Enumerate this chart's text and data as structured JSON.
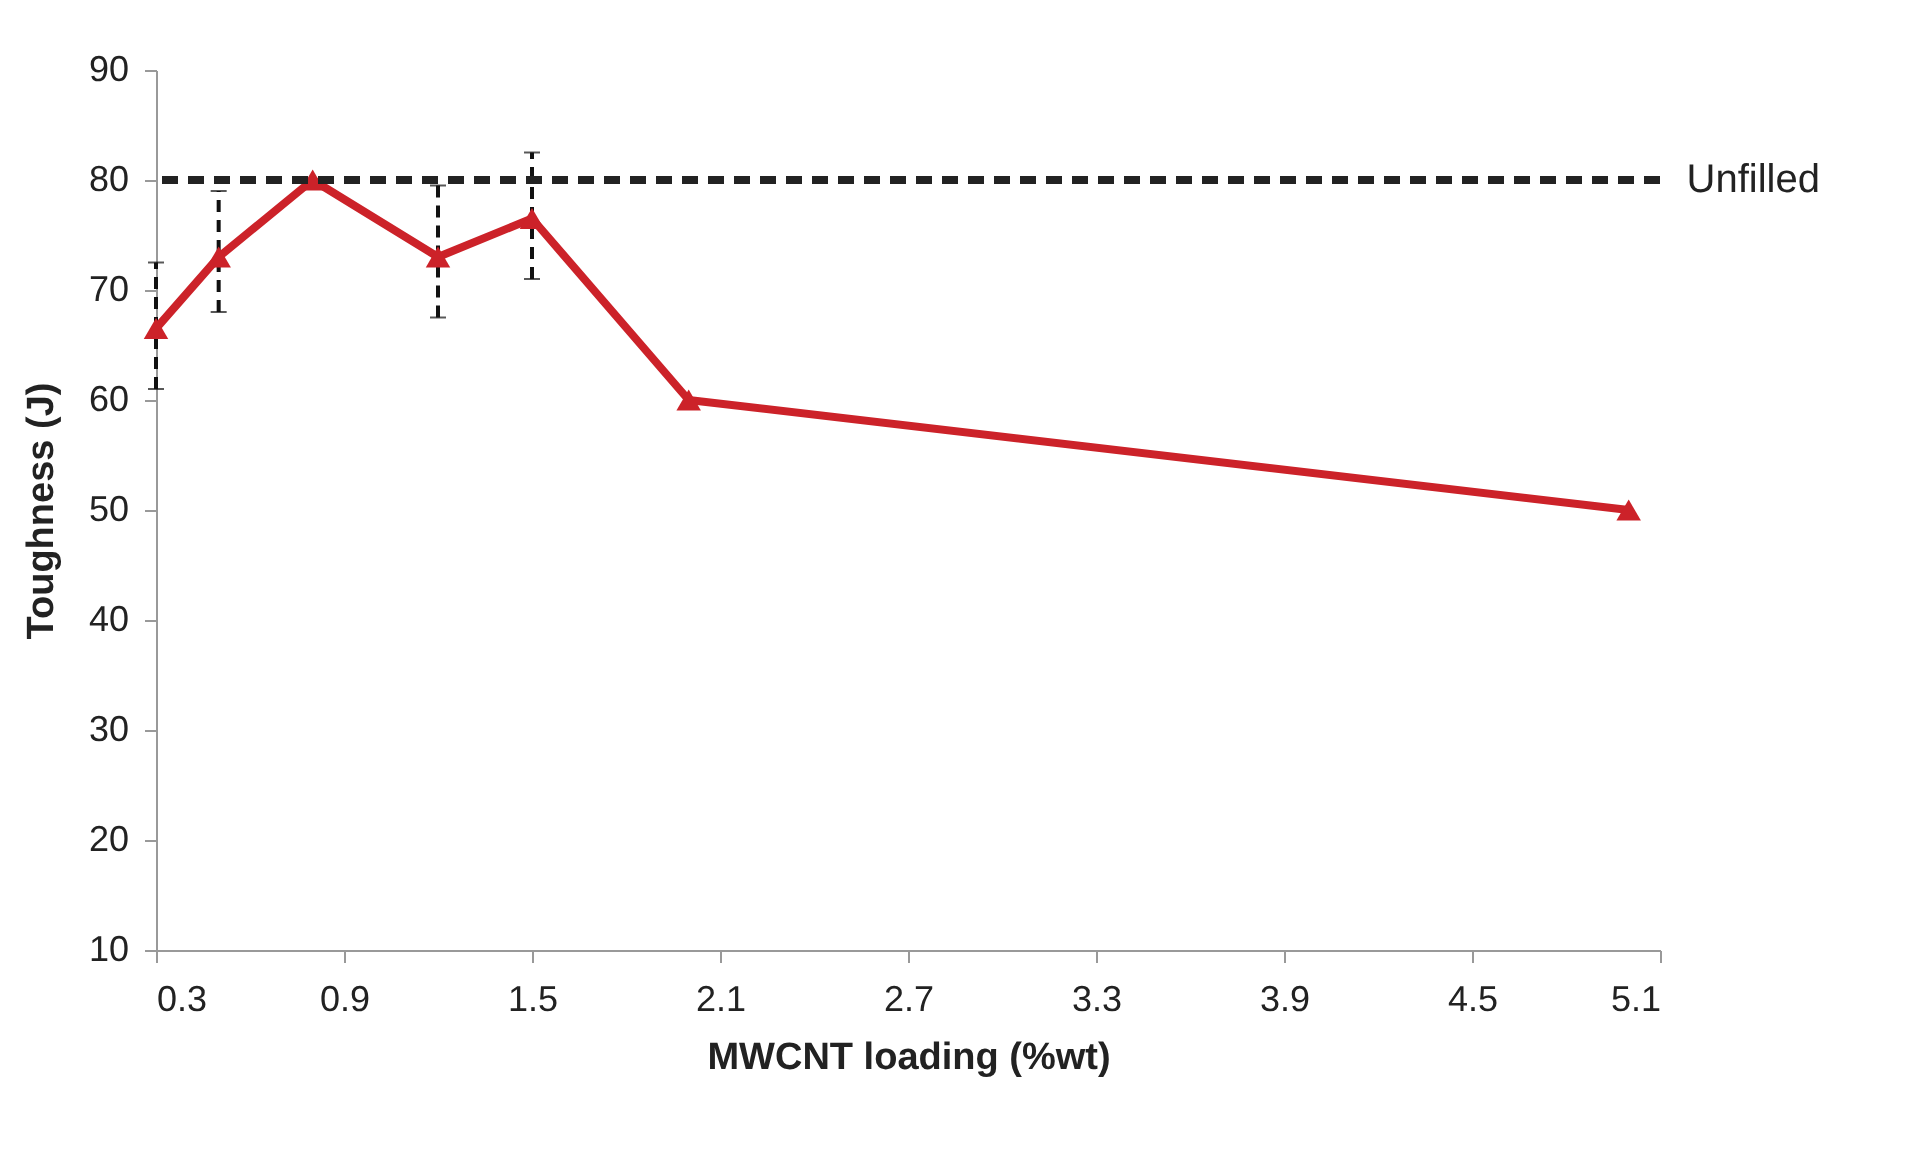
{
  "chart_data": {
    "type": "line",
    "xlabel": "MWCNT loading (%wt)",
    "ylabel": "Toughness (J)",
    "x": [
      0.3,
      0.5,
      0.8,
      1.2,
      1.5,
      2.0,
      5.0
    ],
    "series": [
      {
        "color": "#cc2229",
        "values": [
          66.5,
          73,
          80,
          73,
          76.5,
          60,
          50
        ],
        "errors": [
          [
            61,
            72.5
          ],
          [
            68,
            79
          ],
          null,
          [
            67.5,
            79.5
          ],
          [
            71,
            82.5
          ],
          null,
          null
        ]
      }
    ],
    "xlim": [
      0.3,
      5.1
    ],
    "xticks": [
      0.3,
      0.9,
      1.5,
      2.1,
      2.7,
      3.3,
      3.9,
      4.5,
      5.1
    ],
    "ylim": [
      10,
      90
    ],
    "yticks": [
      10,
      20,
      30,
      40,
      50,
      60,
      70,
      80,
      90
    ],
    "ref_lines": [
      {
        "axis": "y",
        "value": 80,
        "label": "Unfilled",
        "color": "#222222",
        "line_style": "dashed"
      }
    ],
    "marker": "triangle",
    "line_style": "solid",
    "grid": false
  }
}
